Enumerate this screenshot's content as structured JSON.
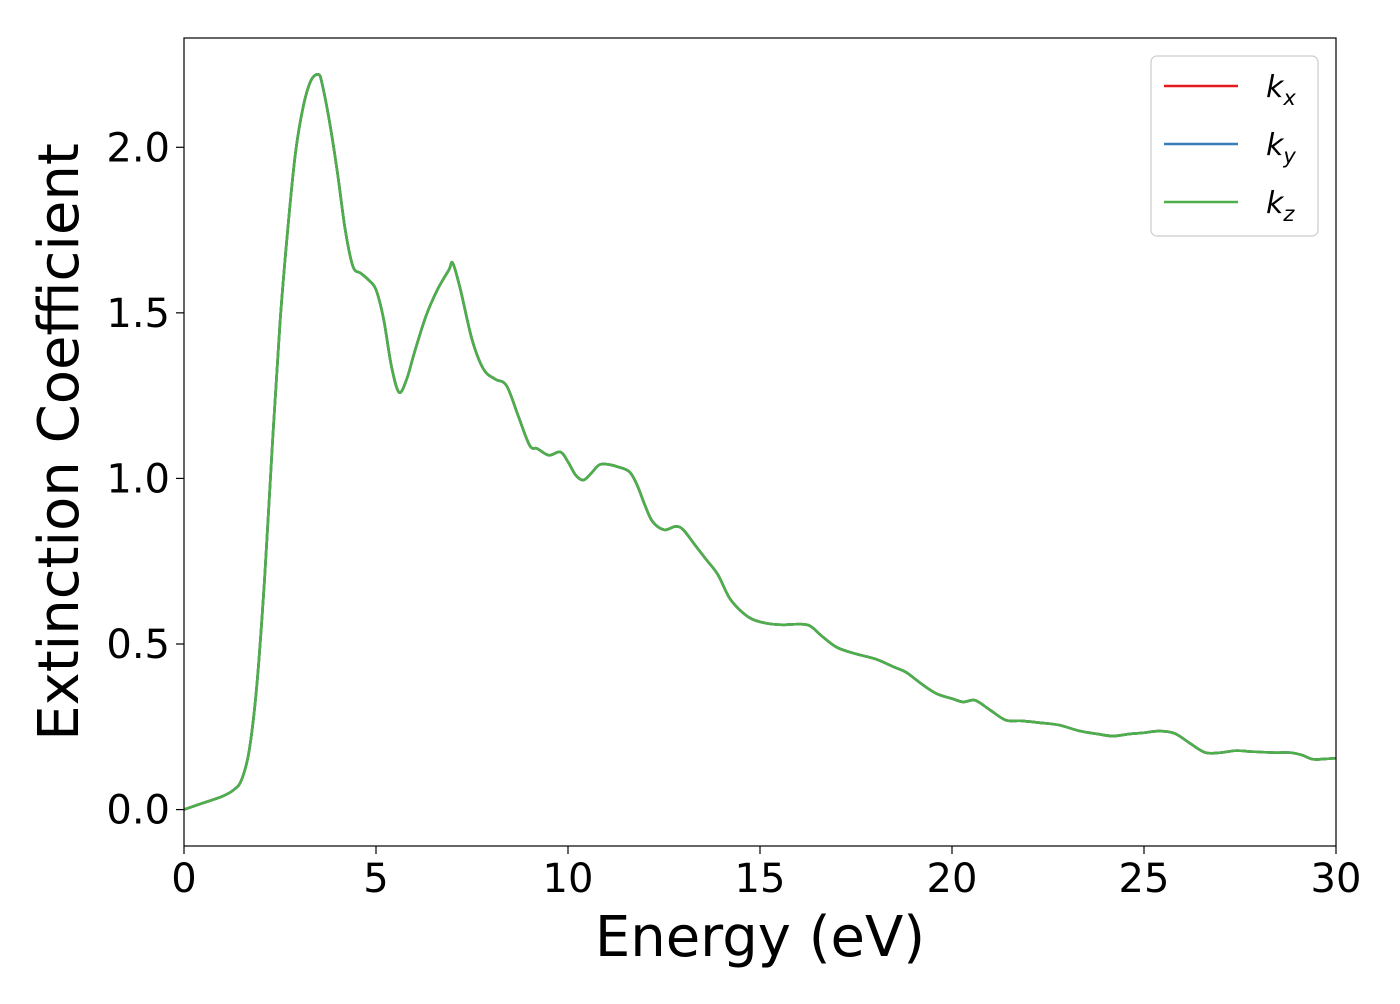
{
  "chart_data": {
    "type": "line",
    "title": "",
    "xlabel": "Energy (eV)",
    "ylabel": "Extinction Coefficient",
    "xlim": [
      0,
      30
    ],
    "ylim": [
      -0.11,
      2.33
    ],
    "xticks": [
      0,
      5,
      10,
      15,
      20,
      25,
      30
    ],
    "xtick_labels": [
      "0",
      "5",
      "10",
      "15",
      "20",
      "25",
      "30"
    ],
    "yticks": [
      0.0,
      0.5,
      1.0,
      1.5,
      2.0
    ],
    "ytick_labels": [
      "0.0",
      "0.5",
      "1.0",
      "1.5",
      "2.0"
    ],
    "grid": false,
    "legend": {
      "position": "top-right",
      "entries": [
        {
          "base": "k",
          "sub": "x",
          "color": "#e41a1c"
        },
        {
          "base": "k",
          "sub": "y",
          "color": "#377eb8"
        },
        {
          "base": "k",
          "sub": "z",
          "color": "#4daf4a"
        }
      ]
    },
    "x": [
      0,
      0.5,
      1.0,
      1.3,
      1.5,
      1.7,
      1.9,
      2.1,
      2.3,
      2.5,
      2.7,
      2.9,
      3.1,
      3.3,
      3.5,
      3.6,
      3.8,
      4.0,
      4.2,
      4.4,
      4.6,
      4.8,
      5.0,
      5.2,
      5.4,
      5.6,
      5.8,
      6.0,
      6.3,
      6.6,
      6.9,
      7.0,
      7.2,
      7.5,
      7.8,
      8.1,
      8.4,
      8.7,
      9.0,
      9.2,
      9.5,
      9.8,
      10.0,
      10.2,
      10.4,
      10.6,
      10.8,
      11.0,
      11.3,
      11.6,
      11.8,
      12.0,
      12.2,
      12.5,
      12.8,
      13.0,
      13.3,
      13.6,
      13.9,
      14.2,
      14.5,
      14.8,
      15.2,
      15.6,
      16.0,
      16.3,
      16.6,
      17.0,
      17.5,
      18.0,
      18.5,
      18.8,
      19.2,
      19.6,
      20.0,
      20.3,
      20.6,
      21.0,
      21.4,
      21.8,
      22.3,
      22.8,
      23.3,
      23.8,
      24.2,
      24.6,
      25.0,
      25.4,
      25.8,
      26.2,
      26.6,
      27.0,
      27.4,
      27.8,
      28.4,
      28.8,
      29.1,
      29.4,
      29.7,
      30.0
    ],
    "series": [
      {
        "name": "k_x",
        "color": "#e41a1c",
        "values": [
          0.0,
          0.02,
          0.04,
          0.06,
          0.09,
          0.18,
          0.38,
          0.7,
          1.1,
          1.47,
          1.75,
          1.98,
          2.12,
          2.2,
          2.22,
          2.19,
          2.07,
          1.92,
          1.75,
          1.64,
          1.62,
          1.6,
          1.57,
          1.48,
          1.34,
          1.26,
          1.3,
          1.38,
          1.49,
          1.57,
          1.63,
          1.65,
          1.57,
          1.42,
          1.33,
          1.3,
          1.28,
          1.19,
          1.1,
          1.09,
          1.07,
          1.08,
          1.05,
          1.01,
          0.995,
          1.015,
          1.04,
          1.043,
          1.035,
          1.02,
          0.98,
          0.92,
          0.87,
          0.845,
          0.855,
          0.845,
          0.8,
          0.755,
          0.71,
          0.64,
          0.6,
          0.575,
          0.562,
          0.558,
          0.56,
          0.555,
          0.525,
          0.49,
          0.47,
          0.455,
          0.43,
          0.415,
          0.38,
          0.35,
          0.335,
          0.325,
          0.33,
          0.3,
          0.27,
          0.268,
          0.262,
          0.255,
          0.238,
          0.228,
          0.222,
          0.228,
          0.232,
          0.237,
          0.23,
          0.2,
          0.172,
          0.172,
          0.178,
          0.175,
          0.172,
          0.172,
          0.165,
          0.152,
          0.153,
          0.155
        ]
      },
      {
        "name": "k_y",
        "color": "#377eb8",
        "values": [
          0.0,
          0.02,
          0.04,
          0.06,
          0.09,
          0.18,
          0.38,
          0.7,
          1.1,
          1.47,
          1.75,
          1.98,
          2.12,
          2.2,
          2.22,
          2.19,
          2.07,
          1.92,
          1.75,
          1.64,
          1.62,
          1.6,
          1.57,
          1.48,
          1.34,
          1.26,
          1.3,
          1.38,
          1.49,
          1.57,
          1.63,
          1.65,
          1.57,
          1.42,
          1.33,
          1.3,
          1.28,
          1.19,
          1.1,
          1.09,
          1.07,
          1.08,
          1.05,
          1.01,
          0.995,
          1.015,
          1.04,
          1.043,
          1.035,
          1.02,
          0.98,
          0.92,
          0.87,
          0.845,
          0.855,
          0.845,
          0.8,
          0.755,
          0.71,
          0.64,
          0.6,
          0.575,
          0.562,
          0.558,
          0.56,
          0.555,
          0.525,
          0.49,
          0.47,
          0.455,
          0.43,
          0.415,
          0.38,
          0.35,
          0.335,
          0.325,
          0.33,
          0.3,
          0.27,
          0.268,
          0.262,
          0.255,
          0.238,
          0.228,
          0.222,
          0.228,
          0.232,
          0.237,
          0.23,
          0.2,
          0.172,
          0.172,
          0.178,
          0.175,
          0.172,
          0.172,
          0.165,
          0.152,
          0.153,
          0.155
        ]
      },
      {
        "name": "k_z",
        "color": "#4daf4a",
        "values": [
          0.0,
          0.02,
          0.04,
          0.06,
          0.09,
          0.18,
          0.38,
          0.7,
          1.1,
          1.47,
          1.75,
          1.98,
          2.12,
          2.2,
          2.22,
          2.19,
          2.07,
          1.92,
          1.75,
          1.64,
          1.62,
          1.6,
          1.57,
          1.48,
          1.34,
          1.26,
          1.3,
          1.38,
          1.49,
          1.57,
          1.63,
          1.65,
          1.57,
          1.42,
          1.33,
          1.3,
          1.28,
          1.19,
          1.1,
          1.09,
          1.07,
          1.08,
          1.05,
          1.01,
          0.995,
          1.015,
          1.04,
          1.043,
          1.035,
          1.02,
          0.98,
          0.92,
          0.87,
          0.845,
          0.855,
          0.845,
          0.8,
          0.755,
          0.71,
          0.64,
          0.6,
          0.575,
          0.562,
          0.558,
          0.56,
          0.555,
          0.525,
          0.49,
          0.47,
          0.455,
          0.43,
          0.415,
          0.38,
          0.35,
          0.335,
          0.325,
          0.33,
          0.3,
          0.27,
          0.268,
          0.262,
          0.255,
          0.238,
          0.228,
          0.222,
          0.228,
          0.232,
          0.237,
          0.23,
          0.2,
          0.172,
          0.172,
          0.178,
          0.175,
          0.172,
          0.172,
          0.165,
          0.152,
          0.153,
          0.155
        ]
      }
    ]
  }
}
